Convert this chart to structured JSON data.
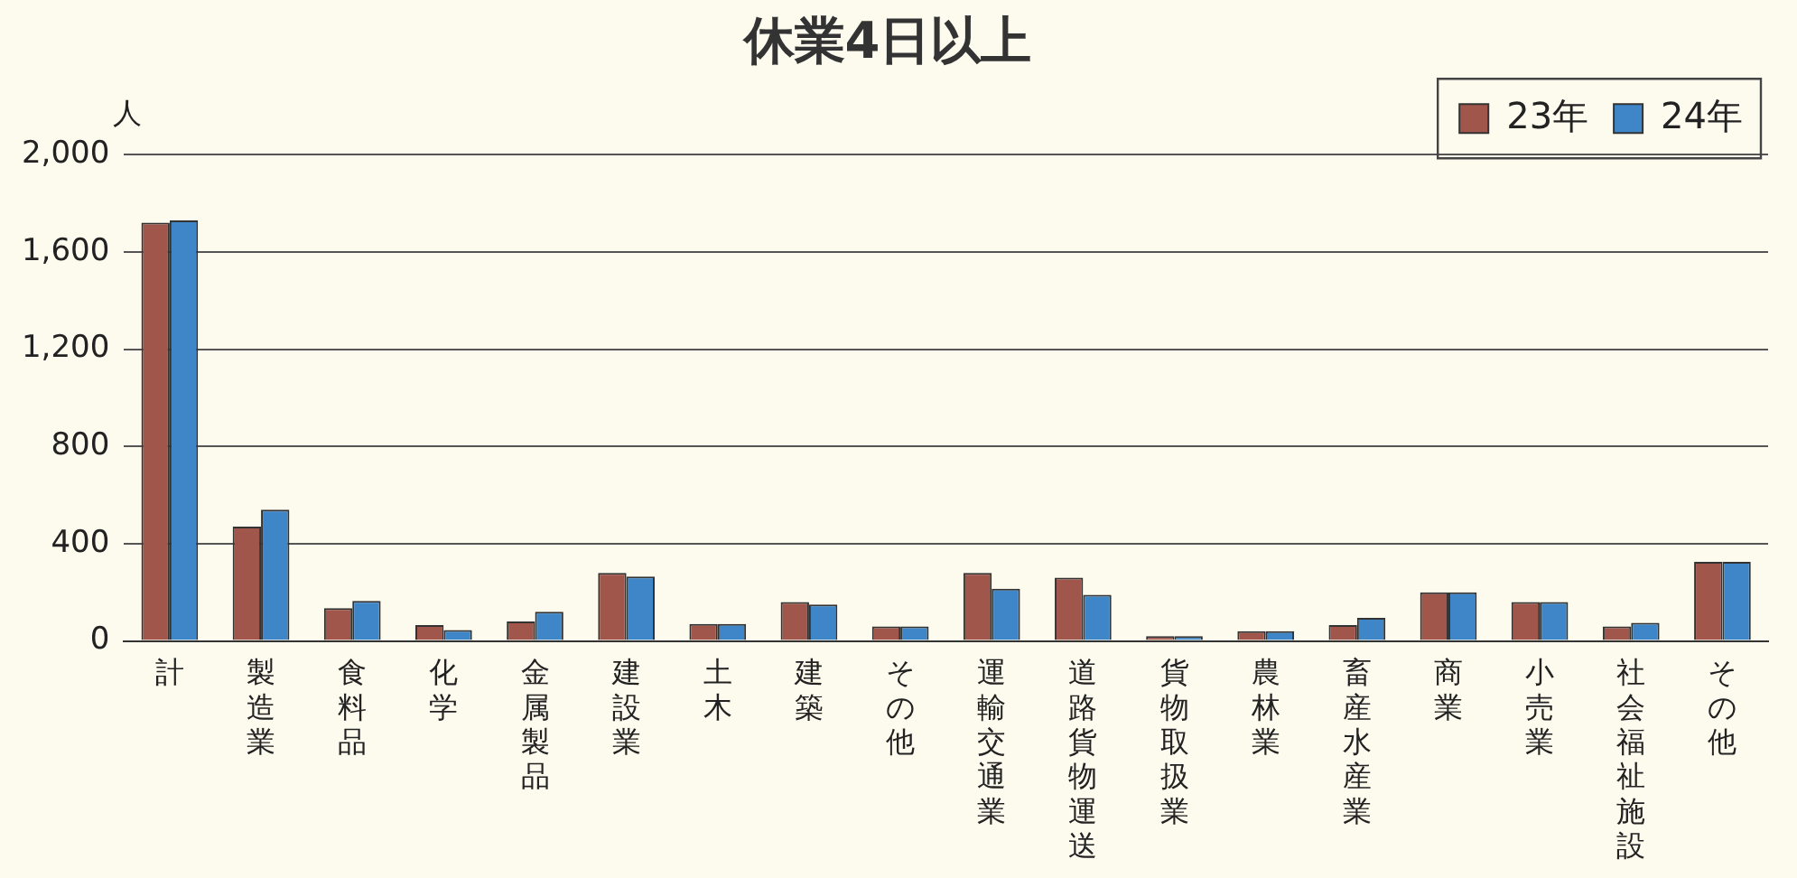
{
  "chart_data": {
    "type": "bar",
    "title": "休業4日以上",
    "ylabel": "人",
    "categories": [
      "計",
      "製造業",
      "食料品",
      "化学",
      "金属製品",
      "建設業",
      "土木",
      "建築",
      "その他",
      "運輸交通業",
      "道路貨物運送",
      "貨物取扱業",
      "農林業",
      "畜産水産業",
      "商業",
      "小売業",
      "社会福祉施設",
      "その他"
    ],
    "series": [
      {
        "name": "23年",
        "color": "#a0564a",
        "values": [
          1720,
          470,
          135,
          65,
          80,
          280,
          70,
          160,
          60,
          280,
          260,
          20,
          40,
          65,
          200,
          160,
          60,
          325
        ]
      },
      {
        "name": "24年",
        "color": "#3f86c8",
        "values": [
          1730,
          540,
          165,
          45,
          120,
          265,
          70,
          150,
          60,
          215,
          190,
          20,
          40,
          95,
          200,
          160,
          75,
          325
        ]
      }
    ],
    "ylim": [
      0,
      2000
    ],
    "yticks": [
      {
        "value": 0,
        "label": "0"
      },
      {
        "value": 400,
        "label": "400"
      },
      {
        "value": 800,
        "label": "800"
      },
      {
        "value": 1200,
        "label": "1,200"
      },
      {
        "value": 1600,
        "label": "1,600"
      },
      {
        "value": 2000,
        "label": "2,000"
      }
    ],
    "grid": "y",
    "legend": "top right"
  }
}
